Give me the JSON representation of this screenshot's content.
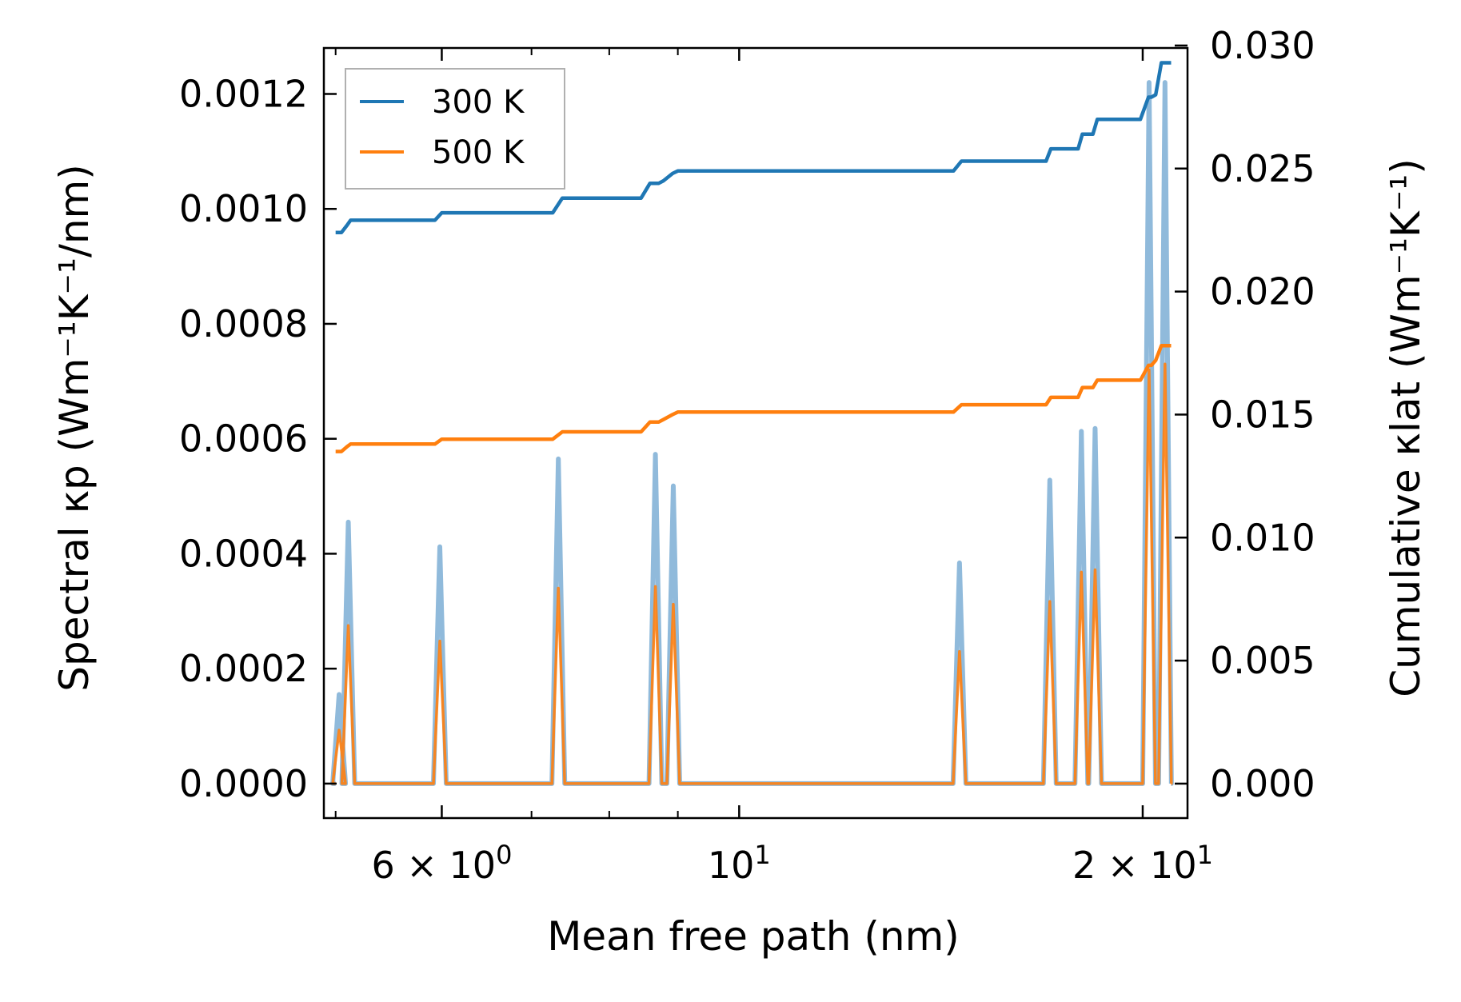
{
  "chart_data": {
    "type": "line",
    "xscale": "log",
    "xlabel": "Mean free path (nm)",
    "ylabel_left": "Spectral κp (Wm⁻¹K⁻¹/nm)",
    "ylabel_right": "Cumulative κlat (Wm⁻¹K⁻¹)",
    "xlim": [
      4.9,
      21.6
    ],
    "ylim_left": [
      -6e-05,
      0.00128
    ],
    "ylim_right": [
      -0.0014,
      0.0299
    ],
    "x_ticks": [
      {
        "value": 6,
        "label": "6 × 10⁰",
        "base": "6",
        "mant": "10",
        "exp": "0"
      },
      {
        "value": 10,
        "label": "10¹",
        "base": "",
        "mant": "10",
        "exp": "1"
      },
      {
        "value": 20,
        "label": "2 × 10¹",
        "base": "2",
        "mant": "10",
        "exp": "1"
      }
    ],
    "x_minor_ticks": [
      5,
      7,
      8,
      9
    ],
    "y_left_ticks": [
      "0.0000",
      "0.0002",
      "0.0004",
      "0.0006",
      "0.0008",
      "0.0010",
      "0.0012"
    ],
    "y_right_ticks": [
      "0.000",
      "0.005",
      "0.010",
      "0.015",
      "0.020",
      "0.025",
      "0.030"
    ],
    "legend": {
      "position": "upper-left",
      "entries": [
        "300 K",
        "500 K"
      ]
    },
    "colors": {
      "300 K": "#1f77b4",
      "500 K": "#ff7f0e",
      "spectral_300": "#6ba3cf",
      "spectral_500": "#ff7f0e"
    },
    "series": [
      {
        "name": "300 K",
        "axis": "right",
        "kind": "cumulative",
        "x": [
          5.0,
          5.05,
          5.1,
          5.13,
          5.93,
          6.0,
          7.26,
          7.38,
          8.45,
          8.58,
          8.71,
          8.78,
          8.92,
          9.0,
          14.45,
          14.65,
          16.94,
          17.08,
          17.9,
          18.03,
          18.36,
          18.5,
          19.92,
          20.2,
          20.3,
          20.45,
          20.65,
          21.0
        ],
        "y": [
          0.0224,
          0.0224,
          0.0227,
          0.0229,
          0.0229,
          0.0232,
          0.0232,
          0.0238,
          0.0238,
          0.0244,
          0.0244,
          0.0245,
          0.0248,
          0.0249,
          0.0249,
          0.0253,
          0.0253,
          0.0258,
          0.0258,
          0.0264,
          0.0264,
          0.027,
          0.027,
          0.0279,
          0.0279,
          0.028,
          0.0293,
          0.0293
        ]
      },
      {
        "name": "500 K",
        "axis": "right",
        "kind": "cumulative",
        "x": [
          5.0,
          5.05,
          5.1,
          5.13,
          5.93,
          6.0,
          7.26,
          7.38,
          8.45,
          8.58,
          8.71,
          8.78,
          8.92,
          9.0,
          14.45,
          14.65,
          16.94,
          17.08,
          17.9,
          18.03,
          18.36,
          18.5,
          19.92,
          20.2,
          20.3,
          20.45,
          20.65,
          21.0
        ],
        "y": [
          0.0135,
          0.0135,
          0.0137,
          0.0138,
          0.0138,
          0.014,
          0.014,
          0.0143,
          0.0143,
          0.0147,
          0.0147,
          0.0148,
          0.015,
          0.0151,
          0.0151,
          0.0154,
          0.0154,
          0.0157,
          0.0157,
          0.0161,
          0.0161,
          0.0164,
          0.0164,
          0.017,
          0.017,
          0.0172,
          0.0178,
          0.0178
        ]
      },
      {
        "name": "300 K",
        "axis": "left",
        "kind": "spectral",
        "peaks": [
          {
            "x": 5.03,
            "y": 0.000155
          },
          {
            "x": 5.11,
            "y": 0.000455
          },
          {
            "x": 5.98,
            "y": 0.000412
          },
          {
            "x": 7.33,
            "y": 0.000565
          },
          {
            "x": 8.66,
            "y": 0.000573
          },
          {
            "x": 8.93,
            "y": 0.000518
          },
          {
            "x": 14.6,
            "y": 0.000384
          },
          {
            "x": 17.05,
            "y": 0.000528
          },
          {
            "x": 18.0,
            "y": 0.000613
          },
          {
            "x": 18.43,
            "y": 0.000618
          },
          {
            "x": 20.22,
            "y": 0.00122
          },
          {
            "x": 20.78,
            "y": 0.00122
          }
        ]
      },
      {
        "name": "500 K",
        "axis": "left",
        "kind": "spectral",
        "peaks": [
          {
            "x": 5.03,
            "y": 9.3e-05
          },
          {
            "x": 5.11,
            "y": 0.000275
          },
          {
            "x": 5.98,
            "y": 0.000248
          },
          {
            "x": 7.33,
            "y": 0.00034
          },
          {
            "x": 8.66,
            "y": 0.000343
          },
          {
            "x": 8.93,
            "y": 0.000312
          },
          {
            "x": 14.6,
            "y": 0.00023
          },
          {
            "x": 17.05,
            "y": 0.000317
          },
          {
            "x": 18.0,
            "y": 0.000368
          },
          {
            "x": 18.43,
            "y": 0.000372
          },
          {
            "x": 20.22,
            "y": 0.00072
          },
          {
            "x": 20.78,
            "y": 0.00073
          }
        ]
      }
    ]
  }
}
